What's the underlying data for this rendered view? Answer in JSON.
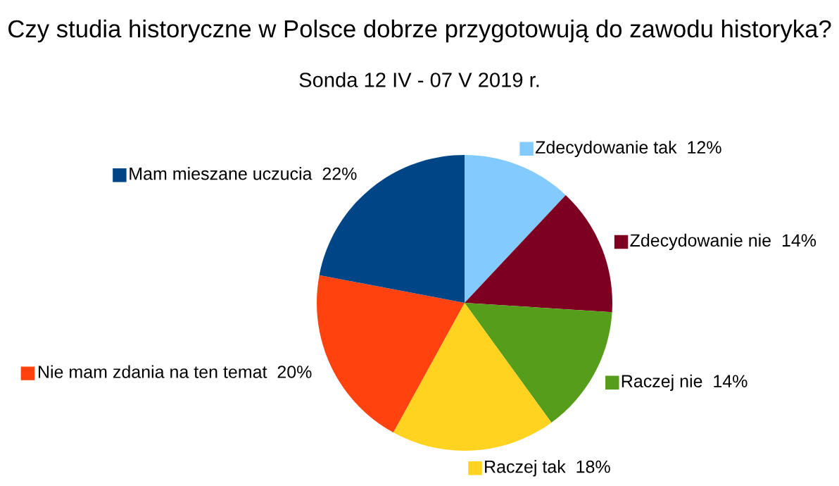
{
  "chart_data": {
    "type": "pie",
    "title": "Czy studia historyczne w Polsce dobrze przygotowują do zawodu historyka?",
    "subtitle": "Sonda 12 IV - 07 V 2019 r.",
    "categories": [
      "Zdecydowanie tak",
      "Zdecydowanie nie",
      "Raczej nie",
      "Raczej tak",
      "Nie mam zdania na ten temat",
      "Mam mieszane uczucia"
    ],
    "values": [
      12,
      14,
      14,
      18,
      20,
      22
    ],
    "value_labels": [
      "12%",
      "14%",
      "14%",
      "18%",
      "20%",
      "22%"
    ],
    "colors": [
      "#83caff",
      "#7e0021",
      "#579d1c",
      "#ffd320",
      "#ff420e",
      "#004586"
    ],
    "legend": "bottom left"
  }
}
